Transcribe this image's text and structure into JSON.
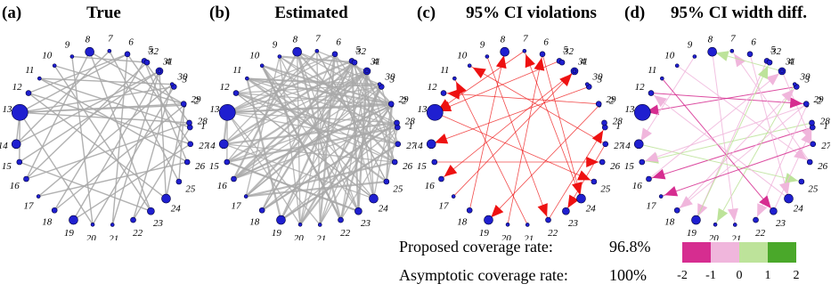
{
  "panels": [
    {
      "label": "(a)",
      "title": "True"
    },
    {
      "label": "(b)",
      "title": "Estimated"
    },
    {
      "label": "(c)",
      "title": "95% CI violations"
    },
    {
      "label": "(d)",
      "title": "95% CI width diff."
    }
  ],
  "node_labels": [
    "1",
    "2",
    "3",
    "4",
    "5",
    "6",
    "7",
    "8",
    "9",
    "10",
    "11",
    "12",
    "13",
    "14",
    "15",
    "16",
    "17",
    "18",
    "19",
    "20",
    "21",
    "22",
    "23",
    "24",
    "25",
    "26",
    "27",
    "28",
    "29",
    "30",
    "31",
    "32"
  ],
  "coverage": [
    {
      "label": "Proposed coverage rate:",
      "value": "96.8%"
    },
    {
      "label": "Asymptotic coverage rate:",
      "value": "100%"
    }
  ],
  "colorbar": {
    "colors": [
      "#d62d90",
      "#f0b6dc",
      "#bde39a",
      "#4aa82a"
    ],
    "ticks": [
      "-2",
      "-1",
      "0",
      "1",
      "2"
    ]
  },
  "colors": {
    "node_fill": "#1f1fd0",
    "edge_gray": "#a9a9a9",
    "violation_red": "#ee1111",
    "width_neg_strong": "#d62d90",
    "width_neg": "#f0b6dc",
    "width_pos": "#bde39a"
  }
}
